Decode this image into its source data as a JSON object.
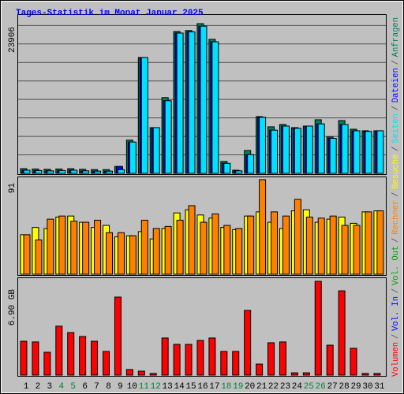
{
  "chart_data": [
    {
      "type": "bar",
      "title": "Tages-Statistik im Monat Januar 2025",
      "ylim": [
        0,
        23906
      ],
      "yticks": [
        23906
      ],
      "series": [
        {
          "name": "Anfragen",
          "color": "#00805c",
          "values": [
            750,
            700,
            650,
            700,
            750,
            650,
            600,
            600,
            1100,
            5300,
            18500,
            7300,
            12100,
            22650,
            22800,
            23906,
            21400,
            1900,
            500,
            3650,
            9060,
            7430,
            7800,
            7300,
            7550,
            8560,
            5800,
            8430,
            7050,
            6800,
            6800
          ]
        },
        {
          "name": "Dateien",
          "color": "#0000ff",
          "values": [
            500,
            450,
            400,
            450,
            500,
            400,
            350,
            350,
            1100,
            5000,
            18500,
            7300,
            11600,
            22400,
            22600,
            23500,
            21000,
            1600,
            400,
            3000,
            8950,
            6900,
            7550,
            7200,
            7550,
            7900,
            5600,
            7800,
            6800,
            6700,
            6800
          ]
        },
        {
          "name": "Seiten",
          "color": "#00e0ff",
          "values": [
            500,
            450,
            400,
            450,
            500,
            400,
            350,
            350,
            600,
            5000,
            18500,
            7300,
            11600,
            22400,
            22600,
            23500,
            21000,
            1600,
            400,
            3000,
            8950,
            6900,
            7550,
            7200,
            7550,
            7900,
            5600,
            7800,
            6800,
            6700,
            6800
          ]
        }
      ]
    },
    {
      "type": "bar",
      "ylim": [
        0,
        91
      ],
      "yticks": [
        91
      ],
      "series": [
        {
          "name": "Besuche",
          "color": "#ffff00",
          "values": [
            38,
            45,
            44,
            55,
            56,
            50,
            45,
            47,
            36,
            37,
            41,
            34,
            44,
            59,
            62,
            57,
            54,
            45,
            43,
            56,
            60,
            50,
            44,
            61,
            62,
            50,
            53,
            55,
            49,
            60,
            61
          ]
        },
        {
          "name": "Rechner",
          "color": "#ff8000",
          "values": [
            38,
            33,
            53,
            56,
            51,
            50,
            52,
            40,
            40,
            37,
            52,
            44,
            46,
            52,
            66,
            50,
            58,
            47,
            44,
            56,
            91,
            60,
            56,
            72,
            55,
            54,
            56,
            47,
            47,
            60,
            61
          ]
        }
      ]
    },
    {
      "type": "bar",
      "ylim": [
        0,
        6.9
      ],
      "yticks": [
        {
          "value": 6.9,
          "label": "6.90 GB"
        }
      ],
      "categories": [
        "1",
        "2",
        "3",
        "4",
        "5",
        "6",
        "7",
        "8",
        "9",
        "10",
        "11",
        "12",
        "13",
        "14",
        "15",
        "16",
        "17",
        "18",
        "19",
        "20",
        "21",
        "22",
        "23",
        "24",
        "25",
        "26",
        "27",
        "28",
        "29",
        "30",
        "31"
      ],
      "weekend_indices": [
        3,
        4,
        10,
        11,
        17,
        18,
        24,
        25
      ],
      "weekend_color": "#008040",
      "series": [
        {
          "name": "Volumen",
          "color": "#ff0000",
          "values": [
            2.49,
            2.44,
            1.68,
            3.6,
            3.13,
            2.84,
            2.49,
            1.74,
            5.74,
            0.41,
            0.29,
            0.12,
            2.73,
            2.26,
            2.26,
            2.55,
            2.73,
            1.74,
            1.74,
            4.76,
            0.81,
            2.38,
            2.44,
            0.17,
            0.17,
            6.9,
            2.2,
            6.2,
            1.97,
            0.12,
            0.12
          ]
        }
      ],
      "legend_extra": [
        {
          "name": "Vol. In",
          "color": "#0000ff"
        },
        {
          "name": "Vol. Out",
          "color": "#00a000"
        }
      ]
    }
  ],
  "legend_separator": "/"
}
